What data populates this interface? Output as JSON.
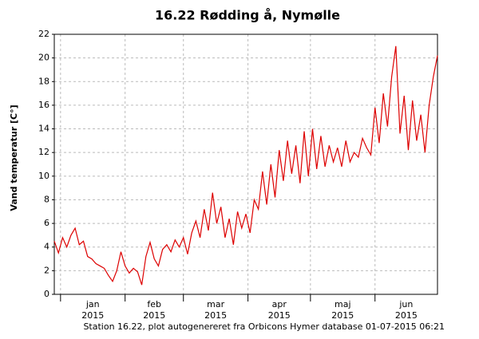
{
  "chart_data": {
    "type": "line",
    "title": "16.22 Rødding å, Nymølle",
    "ylabel": "Vand temperatur [C°]",
    "footer": "Station 16.22, plot autogenereret fra Orbicons Hymer database 01-07-2015 06:21",
    "color": "#dd0000",
    "grid": true,
    "xlim": [
      0,
      184
    ],
    "ylim": [
      0,
      22
    ],
    "yticks": [
      0,
      2,
      4,
      6,
      8,
      10,
      12,
      14,
      16,
      18,
      20,
      22
    ],
    "x_months": [
      {
        "label": "jan",
        "year": "2015",
        "start": 3,
        "end": 34
      },
      {
        "label": "feb",
        "year": "2015",
        "start": 34,
        "end": 62
      },
      {
        "label": "mar",
        "year": "2015",
        "start": 62,
        "end": 93
      },
      {
        "label": "apr",
        "year": "2015",
        "start": 93,
        "end": 123
      },
      {
        "label": "maj",
        "year": "2015",
        "start": 123,
        "end": 154
      },
      {
        "label": "jun",
        "year": "2015",
        "start": 154,
        "end": 184
      }
    ],
    "x": [
      0,
      2,
      4,
      6,
      8,
      10,
      12,
      14,
      16,
      18,
      20,
      22,
      24,
      26,
      28,
      30,
      32,
      34,
      36,
      38,
      40,
      42,
      44,
      46,
      48,
      50,
      52,
      54,
      56,
      58,
      60,
      62,
      64,
      66,
      68,
      70,
      72,
      74,
      76,
      78,
      80,
      82,
      84,
      86,
      88,
      90,
      92,
      94,
      96,
      98,
      100,
      102,
      104,
      106,
      108,
      110,
      112,
      114,
      116,
      118,
      120,
      122,
      124,
      126,
      128,
      130,
      132,
      134,
      136,
      138,
      140,
      142,
      144,
      146,
      148,
      150,
      152,
      154,
      156,
      158,
      160,
      162,
      164,
      166,
      168,
      170,
      172,
      174,
      176,
      178,
      180,
      182,
      184
    ],
    "values": [
      4.5,
      3.5,
      4.8,
      4.0,
      5.0,
      5.6,
      4.2,
      4.5,
      3.2,
      3.0,
      2.6,
      2.4,
      2.2,
      1.6,
      1.1,
      2.0,
      3.6,
      2.4,
      1.8,
      2.2,
      1.9,
      0.8,
      3.2,
      4.4,
      3.0,
      2.4,
      3.8,
      4.2,
      3.6,
      4.6,
      4.0,
      4.8,
      3.4,
      5.2,
      6.2,
      4.8,
      7.2,
      5.4,
      8.6,
      6.0,
      7.4,
      4.8,
      6.4,
      4.2,
      7.0,
      5.6,
      6.8,
      5.2,
      8.0,
      7.2,
      10.4,
      7.6,
      11.0,
      8.2,
      12.2,
      9.6,
      13.0,
      10.2,
      12.6,
      9.4,
      13.8,
      10.0,
      14.0,
      10.6,
      13.4,
      10.8,
      12.6,
      11.2,
      12.4,
      10.8,
      13.0,
      11.2,
      12.0,
      11.6,
      13.2,
      12.4,
      11.8,
      15.8,
      12.8,
      17.0,
      14.2,
      18.4,
      21.0,
      13.6,
      16.8,
      12.2,
      16.4,
      13.0,
      15.2,
      12.0,
      16.0,
      18.4,
      20.2
    ]
  }
}
